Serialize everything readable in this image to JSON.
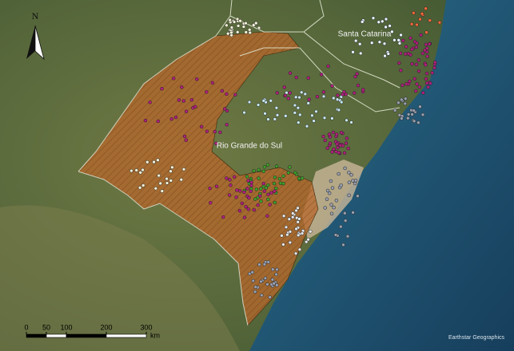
{
  "map": {
    "north_label": "N",
    "places": [
      "Santa Catarina",
      "Rio Grande do Sul"
    ],
    "scale": {
      "ticks": [
        0,
        50,
        100,
        200,
        300
      ],
      "unit": "km"
    },
    "credit": "Earthstar Geographics"
  }
}
